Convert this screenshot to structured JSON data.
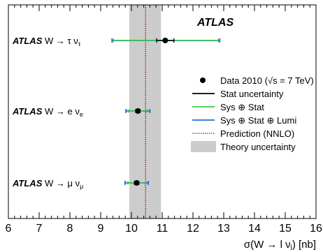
{
  "chart_data": {
    "type": "errorbar",
    "header_label": "ATLAS",
    "xlabel": "σ(W → l νl) [nb]",
    "xlim": [
      6,
      16
    ],
    "xticks": [
      "6",
      "7",
      "8",
      "9",
      "10",
      "11",
      "12",
      "13",
      "14",
      "15",
      "16"
    ],
    "x_minor_step": 0.2,
    "prediction": {
      "value": 10.46,
      "band": [
        9.93,
        10.96
      ],
      "color": "#8b1a1a",
      "band_color": "#cccccc"
    },
    "measurements": [
      {
        "prefix": "ATLAS",
        "label": "W → τ ντ",
        "value": 11.1,
        "stat": [
          10.82,
          11.38
        ],
        "sys_stat": [
          9.42,
          12.82
        ],
        "sys_stat_lumi": [
          9.37,
          12.87
        ]
      },
      {
        "prefix": "ATLAS",
        "label": "W → e νe",
        "value": 10.21,
        "stat": [
          10.14,
          10.28
        ],
        "sys_stat": [
          9.92,
          10.5
        ],
        "sys_stat_lumi": [
          9.82,
          10.6
        ]
      },
      {
        "prefix": "ATLAS",
        "label": "W → μ νμ",
        "value": 10.17,
        "stat": [
          10.1,
          10.24
        ],
        "sys_stat": [
          9.89,
          10.45
        ],
        "sys_stat_lumi": [
          9.79,
          10.55
        ]
      }
    ],
    "legend": {
      "position": "right",
      "entries": [
        {
          "label": "Data 2010 (√s = 7 TeV)",
          "kind": "marker",
          "color": "#000000"
        },
        {
          "label": "Stat uncertainty",
          "kind": "line",
          "color": "#000000"
        },
        {
          "label": "Sys ⊕ Stat",
          "kind": "line",
          "color": "#3ec93e"
        },
        {
          "label": "Sys ⊕ Stat ⊕ Lumi",
          "kind": "line",
          "color": "#1f6fd0"
        },
        {
          "label": "Prediction (NNLO)",
          "kind": "dotted",
          "color": "#8b1a1a"
        },
        {
          "label": "Theory uncertainty",
          "kind": "box",
          "color": "#cccccc"
        }
      ]
    }
  }
}
